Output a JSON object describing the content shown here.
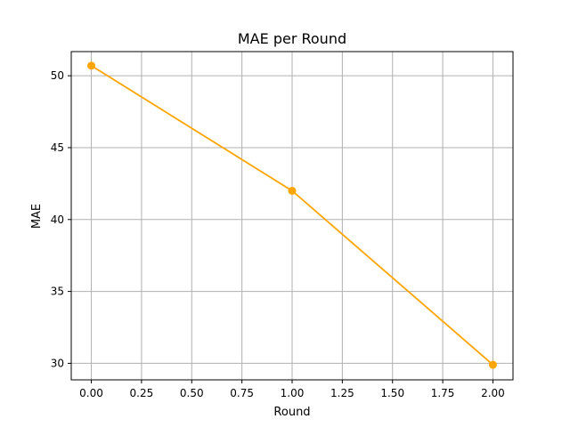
{
  "chart_data": {
    "type": "line",
    "title": "MAE per Round",
    "xlabel": "Round",
    "ylabel": "MAE",
    "xlim": [
      -0.1,
      2.1
    ],
    "ylim": [
      28.85,
      51.68
    ],
    "x_ticks": [
      0.0,
      0.25,
      0.5,
      0.75,
      1.0,
      1.25,
      1.5,
      1.75,
      2.0
    ],
    "x_tick_labels": [
      "0.00",
      "0.25",
      "0.50",
      "0.75",
      "1.00",
      "1.25",
      "1.50",
      "1.75",
      "2.00"
    ],
    "y_ticks": [
      30,
      35,
      40,
      45,
      50
    ],
    "y_tick_labels": [
      "30",
      "35",
      "40",
      "45",
      "50"
    ],
    "grid": true,
    "color": "#ffa500",
    "series": [
      {
        "x": [
          0,
          1,
          2
        ],
        "y": [
          50.7,
          42.0,
          29.9
        ]
      }
    ]
  }
}
